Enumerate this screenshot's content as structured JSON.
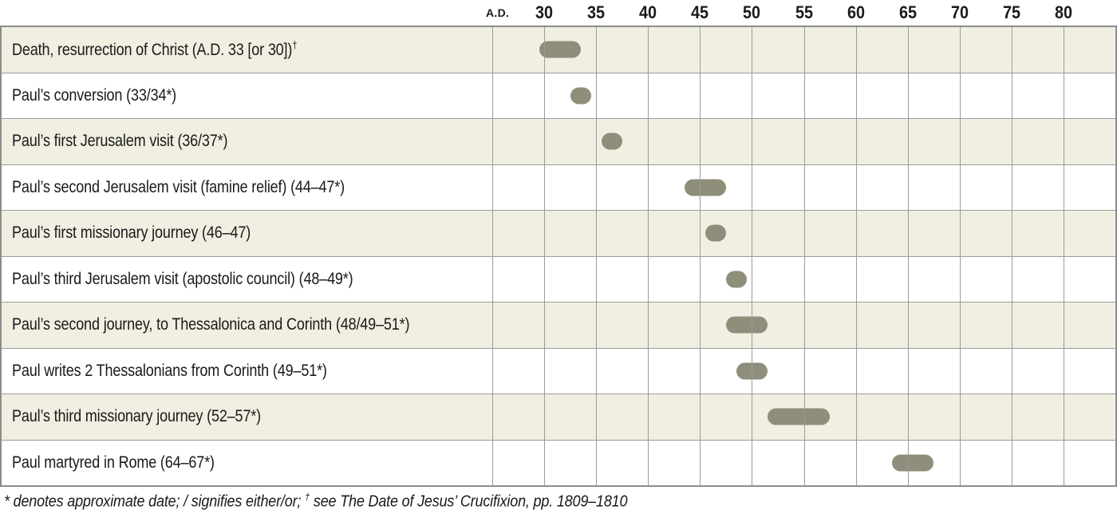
{
  "chart_data": {
    "type": "bar",
    "subtype": "timeline-gantt",
    "title": "",
    "x_axis": {
      "era_label": "A.D.",
      "ticks": [
        30,
        35,
        40,
        45,
        50,
        55,
        60,
        65,
        70,
        75,
        80
      ],
      "tick_interval": 5,
      "range": [
        25,
        85
      ],
      "grid": true
    },
    "rows": [
      {
        "label": "Death, resurrection of Christ (A.D. 33 [or 30])",
        "sup": "†",
        "start": 30,
        "end": 33
      },
      {
        "label": "Paul’s conversion (33/34*)",
        "start": 33,
        "end": 34
      },
      {
        "label": "Paul’s first Jerusalem visit (36/37*)",
        "start": 36,
        "end": 37
      },
      {
        "label": "Paul’s second Jerusalem visit (famine relief) (44–47*)",
        "start": 44,
        "end": 47
      },
      {
        "label": "Paul’s first missionary journey (46–47)",
        "start": 46,
        "end": 47
      },
      {
        "label": "Paul’s third Jerusalem visit (apostolic council) (48–49*)",
        "start": 48,
        "end": 49
      },
      {
        "label": "Paul’s second journey, to Thessalonica and Corinth (48/49–51*)",
        "start": 48,
        "end": 51
      },
      {
        "label": "Paul writes 2 Thessalonians from Corinth (49–51*)",
        "start": 49,
        "end": 51
      },
      {
        "label": "Paul’s third missionary journey (52–57*)",
        "start": 52,
        "end": 57
      },
      {
        "label": "Paul martyred in Rome (64–67*)",
        "start": 64,
        "end": 67
      }
    ]
  },
  "footnote": {
    "part1": "* denotes approximate date; / signifies either/or; ",
    "dagger": "†",
    "part2": " see The Date of Jesus’ Crucifixion, pp. 1809–1810"
  },
  "colors": {
    "row_stripe": "#f1efe2",
    "row_plain": "#ffffff",
    "bar": "#8f8e7b",
    "grid_line": "#9b9b99",
    "table_border": "#8c8c8a",
    "text": "#1a1a1a"
  }
}
